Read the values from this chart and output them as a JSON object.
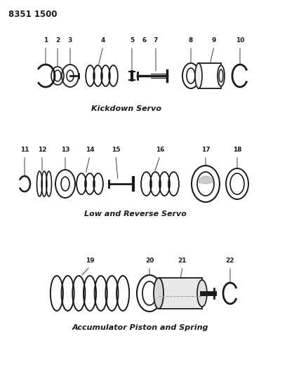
{
  "title_code": "8351 1500",
  "bg_color": "#ffffff",
  "line_color": "#1a1a1a",
  "section1_label": "Kickdown Servo",
  "section2_label": "Low and Reverse Servo",
  "section3_label": "Accumulator Piston and Spring"
}
